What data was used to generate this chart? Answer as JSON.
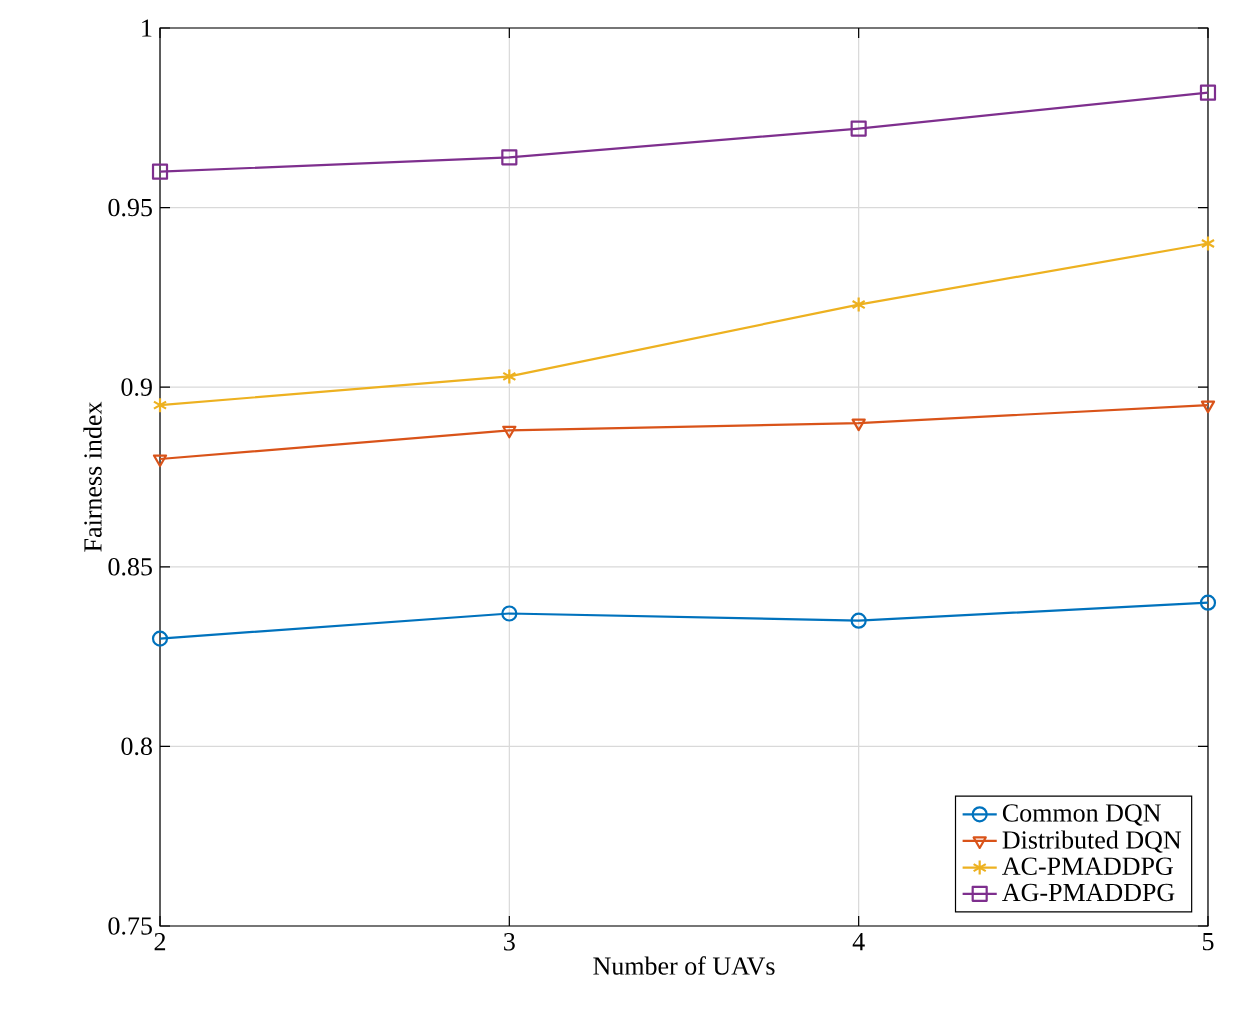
{
  "chart_data": {
    "type": "line",
    "xlabel": "Number of UAVs",
    "ylabel": "Fairness index",
    "x": [
      2,
      3,
      4,
      5
    ],
    "series": [
      {
        "name": "Common DQN",
        "color": "#0072bd",
        "marker": "circle",
        "values": [
          0.83,
          0.837,
          0.835,
          0.84
        ]
      },
      {
        "name": "Distributed DQN",
        "color": "#d95319",
        "marker": "triangle",
        "values": [
          0.88,
          0.888,
          0.89,
          0.895
        ]
      },
      {
        "name": "AC-PMADDPG",
        "color": "#edb120",
        "marker": "cross",
        "values": [
          0.895,
          0.903,
          0.923,
          0.94
        ]
      },
      {
        "name": "AG-PMADDPG",
        "color": "#7e2f8e",
        "marker": "square",
        "values": [
          0.96,
          0.964,
          0.972,
          0.982
        ]
      }
    ],
    "xlim": [
      2,
      5
    ],
    "xticks": [
      2,
      3,
      4,
      5
    ],
    "ylim": [
      0.75,
      1
    ],
    "yticks": [
      0.75,
      0.8,
      0.85,
      0.9,
      0.95,
      1
    ],
    "grid": true,
    "legend": "bottom right",
    "line_style": "solid"
  }
}
